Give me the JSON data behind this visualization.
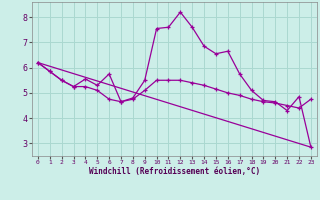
{
  "xlabel": "Windchill (Refroidissement éolien,°C)",
  "bg_color": "#cceee8",
  "grid_color": "#aad8d0",
  "line_color": "#990099",
  "x_ticks": [
    0,
    1,
    2,
    3,
    4,
    5,
    6,
    7,
    8,
    9,
    10,
    11,
    12,
    13,
    14,
    15,
    16,
    17,
    18,
    19,
    20,
    21,
    22,
    23
  ],
  "y_ticks": [
    3,
    4,
    5,
    6,
    7,
    8
  ],
  "ylim": [
    2.5,
    8.6
  ],
  "xlim": [
    -0.5,
    23.5
  ],
  "series1_x": [
    0,
    1,
    2,
    3,
    4,
    5,
    6,
    7,
    8,
    9,
    10,
    11,
    12,
    13,
    14,
    15,
    16,
    17,
    18,
    19,
    20,
    21,
    22,
    23
  ],
  "series1_y": [
    6.2,
    5.85,
    5.5,
    5.25,
    5.55,
    5.3,
    5.75,
    4.65,
    4.8,
    5.5,
    7.55,
    7.6,
    8.2,
    7.6,
    6.85,
    6.55,
    6.65,
    5.75,
    5.1,
    4.7,
    4.65,
    4.3,
    4.85,
    2.85
  ],
  "series2_x": [
    0,
    1,
    2,
    3,
    4,
    5,
    6,
    7,
    8,
    9,
    10,
    11,
    12,
    13,
    14,
    15,
    16,
    17,
    18,
    19,
    20,
    21,
    22,
    23
  ],
  "series2_y": [
    6.2,
    5.85,
    5.5,
    5.25,
    5.25,
    5.1,
    4.75,
    4.65,
    4.75,
    5.1,
    5.5,
    5.5,
    5.5,
    5.4,
    5.3,
    5.15,
    5.0,
    4.9,
    4.75,
    4.65,
    4.6,
    4.5,
    4.4,
    4.75
  ],
  "series3_x": [
    0,
    23
  ],
  "series3_y": [
    6.2,
    2.85
  ]
}
